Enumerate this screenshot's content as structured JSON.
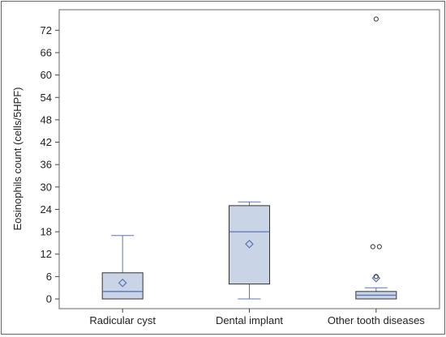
{
  "chart_data": {
    "type": "boxplot",
    "title": "",
    "xlabel": "",
    "ylabel": "Eosinophils count (cells/5HPF)",
    "ylim": [
      -2.6,
      77.5
    ],
    "yticks": [
      0,
      6,
      12,
      18,
      24,
      30,
      36,
      42,
      48,
      54,
      60,
      66,
      72
    ],
    "grid": false,
    "legend": "none",
    "colors": {
      "box_fill": "#c9d4e6",
      "box_stroke": "#5b74b5",
      "whisker": "#5b74b5",
      "outlier": "#333333",
      "frame": "#555555"
    },
    "categories": [
      "Radicular cyst",
      "Dental implant",
      "Other tooth diseases"
    ],
    "boxes": [
      {
        "name": "Radicular cyst",
        "min": 0,
        "q1": 0,
        "median": 2,
        "q3": 7,
        "max": 17,
        "mean": 4.3,
        "outliers": []
      },
      {
        "name": "Dental implant",
        "min": 0,
        "q1": 4,
        "median": 18,
        "q3": 25,
        "max": 26,
        "mean": 14.7,
        "outliers": []
      },
      {
        "name": "Other tooth diseases",
        "min": 0,
        "q1": 0,
        "median": 1,
        "q3": 2,
        "max": 3,
        "mean": 5.6,
        "outliers": [
          6,
          14,
          14,
          75
        ]
      }
    ]
  }
}
